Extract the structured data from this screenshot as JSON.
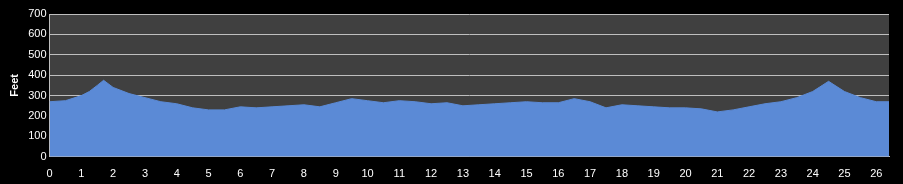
{
  "chart_data": {
    "type": "area",
    "y_label": "Feet",
    "x": [
      0,
      0.5,
      1,
      1.25,
      1.5,
      1.7,
      2,
      2.5,
      3,
      3.5,
      4,
      4.5,
      5,
      5.5,
      6,
      6.5,
      7,
      7.5,
      8,
      8.5,
      9,
      9.5,
      10,
      10.5,
      11,
      11.5,
      12,
      12.5,
      13,
      13.5,
      14,
      14.5,
      15,
      15.5,
      16,
      16.5,
      17,
      17.5,
      18,
      18.5,
      19,
      19.5,
      20,
      20.5,
      21,
      21.5,
      22,
      22.5,
      23,
      23.5,
      24,
      24.5,
      25,
      25.5,
      26,
      26.4
    ],
    "values": [
      270,
      275,
      300,
      320,
      350,
      375,
      340,
      310,
      290,
      270,
      260,
      240,
      230,
      230,
      245,
      240,
      245,
      250,
      255,
      245,
      265,
      285,
      275,
      265,
      275,
      270,
      260,
      265,
      250,
      255,
      260,
      265,
      270,
      265,
      265,
      285,
      270,
      240,
      255,
      250,
      245,
      240,
      240,
      235,
      220,
      230,
      245,
      260,
      270,
      290,
      320,
      370,
      320,
      290,
      270,
      270
    ],
    "color": "#5b8ad6",
    "xlim": [
      0,
      26.4
    ],
    "xticks": [
      0,
      1,
      2,
      3,
      4,
      5,
      6,
      7,
      8,
      9,
      10,
      11,
      12,
      13,
      14,
      15,
      16,
      17,
      18,
      19,
      20,
      21,
      22,
      23,
      24,
      25,
      26
    ],
    "ylim": [
      0,
      700
    ],
    "yticks": [
      0,
      100,
      200,
      300,
      400,
      500,
      600,
      700
    ],
    "grid": true
  }
}
